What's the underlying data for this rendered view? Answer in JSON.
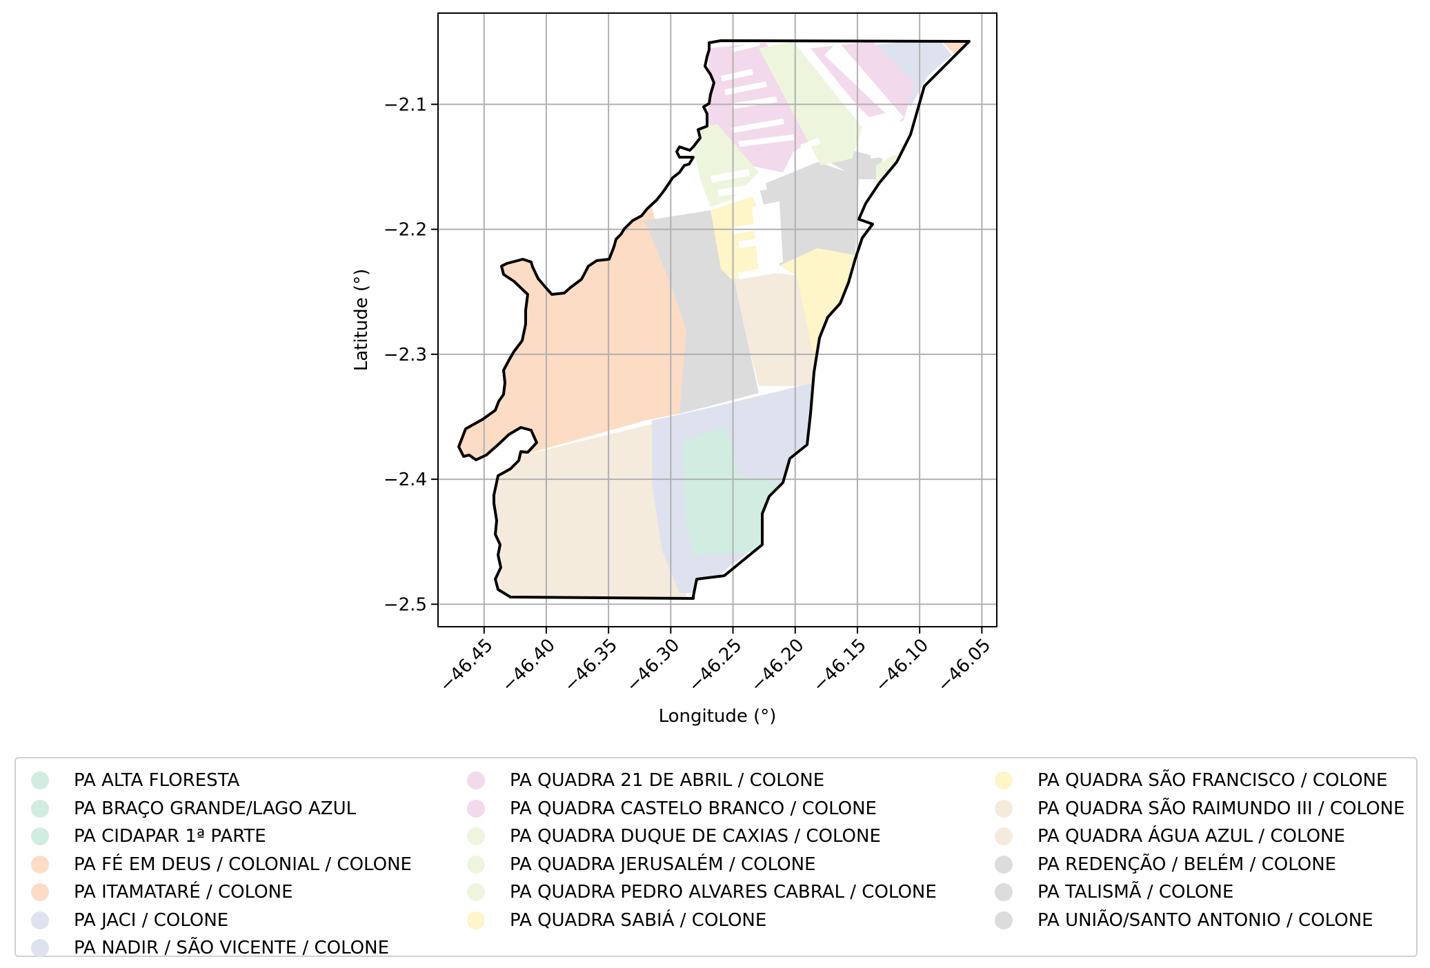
{
  "chart_data": {
    "type": "map",
    "xlabel": "Longitude (°)",
    "ylabel": "Latitude (°)",
    "xlim": [
      -46.487,
      -46.038
    ],
    "ylim": [
      -2.518,
      -2.027
    ],
    "xticks": [
      -46.45,
      -46.4,
      -46.35,
      -46.3,
      -46.25,
      -46.2,
      -46.15,
      -46.1,
      -46.05
    ],
    "xtick_labels": [
      "−46.45",
      "−46.40",
      "−46.35",
      "−46.30",
      "−46.25",
      "−46.20",
      "−46.15",
      "−46.10",
      "−46.05"
    ],
    "yticks": [
      -2.1,
      -2.2,
      -2.3,
      -2.4,
      -2.5
    ],
    "ytick_labels": [
      "−2.1",
      "−2.2",
      "−2.3",
      "−2.4",
      "−2.5"
    ],
    "grid": true,
    "legend_position": "bottom",
    "colors": {
      "green": "#d1ede1",
      "orange": "#fcdcc4",
      "blue": "#dee2ef",
      "pink": "#f3d9ec",
      "lime": "#edf6dc",
      "yellow": "#fef5c8",
      "tan": "#f4ebdd",
      "gray": "#dcdcdc"
    },
    "legend": [
      {
        "label": "PA ALTA FLORESTA",
        "color": "#d1ede1"
      },
      {
        "label": "PA BRAÇO GRANDE/LAGO AZUL",
        "color": "#d1ede1"
      },
      {
        "label": "PA CIDAPAR 1ª PARTE",
        "color": "#d1ede1"
      },
      {
        "label": "PA FÉ EM DEUS / COLONIAL / COLONE",
        "color": "#fcdcc4"
      },
      {
        "label": "PA ITAMATARÉ / COLONE",
        "color": "#fcdcc4"
      },
      {
        "label": "PA JACI / COLONE",
        "color": "#dee2ef"
      },
      {
        "label": "PA NADIR / SÃO VICENTE / COLONE",
        "color": "#dee2ef"
      },
      {
        "label": "PA QUADRA 21 DE ABRIL / COLONE",
        "color": "#f3d9ec"
      },
      {
        "label": "PA QUADRA CASTELO BRANCO / COLONE",
        "color": "#f3d9ec"
      },
      {
        "label": "PA QUADRA DUQUE DE CAXIAS / COLONE",
        "color": "#edf6dc"
      },
      {
        "label": "PA QUADRA JERUSALÉM / COLONE",
        "color": "#edf6dc"
      },
      {
        "label": "PA QUADRA PEDRO ALVARES CABRAL / COLONE",
        "color": "#edf6dc"
      },
      {
        "label": "PA QUADRA SABIÁ / COLONE",
        "color": "#fef5c8"
      },
      {
        "label": "PA QUADRA SÃO FRANCISCO / COLONE",
        "color": "#fef5c8"
      },
      {
        "label": "PA QUADRA SÃO RAIMUNDO III / COLONE",
        "color": "#f4ebdd"
      },
      {
        "label": "PA QUADRA ÁGUA AZUL / COLONE",
        "color": "#f4ebdd"
      },
      {
        "label": "PA REDENÇÃO / BELÉM / COLONE",
        "color": "#dcdcdc"
      },
      {
        "label": "PA TALISMÃ / COLONE",
        "color": "#dcdcdc"
      },
      {
        "label": "PA UNIÃO/SANTO ANTONIO / COLONE",
        "color": "#dcdcdc"
      }
    ]
  }
}
